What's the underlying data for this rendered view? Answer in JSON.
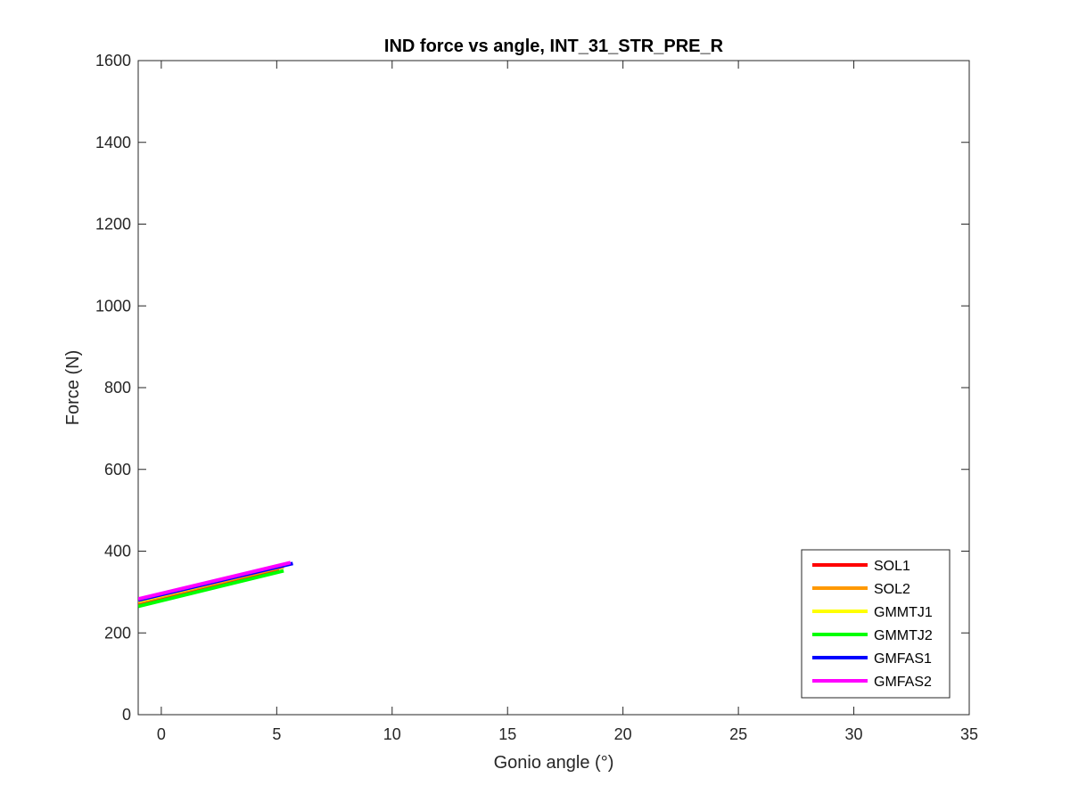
{
  "chart_data": {
    "type": "line",
    "title": "IND force vs angle, INT_31_STR_PRE_R",
    "xlabel": "Gonio angle (°)",
    "ylabel": "Force (N)",
    "xlim": [
      -1,
      35
    ],
    "ylim": [
      0,
      1600
    ],
    "xticks": [
      0,
      5,
      10,
      15,
      20,
      25,
      30,
      35
    ],
    "yticks": [
      0,
      200,
      400,
      600,
      800,
      1000,
      1200,
      1400,
      1600
    ],
    "grid": false,
    "legend_position": "bottom-right",
    "series": [
      {
        "name": "SOL1",
        "color": "#ff0000",
        "x": [
          -1,
          5.1
        ],
        "y": [
          270,
          355
        ]
      },
      {
        "name": "SOL2",
        "color": "#ff9900",
        "x": [
          -1,
          5.3
        ],
        "y": [
          275,
          362
        ]
      },
      {
        "name": "GMMTJ1",
        "color": "#ffff00",
        "x": [
          -1,
          5.5
        ],
        "y": [
          278,
          368
        ]
      },
      {
        "name": "GMMTJ2",
        "color": "#00ff00",
        "x": [
          -1,
          5.3
        ],
        "y": [
          265,
          352
        ]
      },
      {
        "name": "GMFAS1",
        "color": "#0000ff",
        "x": [
          -1,
          5.7
        ],
        "y": [
          280,
          370
        ]
      },
      {
        "name": "GMFAS2",
        "color": "#ff00ff",
        "x": [
          -1,
          5.6
        ],
        "y": [
          283,
          372
        ]
      }
    ]
  }
}
